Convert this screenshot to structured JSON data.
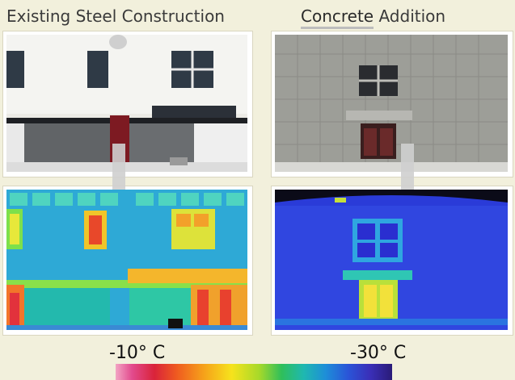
{
  "titles": {
    "left": "Existing Steel Construction",
    "right_concrete": "Concrete",
    "right_addition": "Addition"
  },
  "scale": {
    "warm_label": "-10° C",
    "cold_label": "-30° C",
    "colors": [
      "#f2a4c4",
      "#e24a8d",
      "#d9233a",
      "#ef5a20",
      "#f6a21a",
      "#f6e31c",
      "#a6d92a",
      "#2fbf5a",
      "#1fb8b0",
      "#1e8ed8",
      "#2a55d8",
      "#3a2fb8",
      "#2a1b78"
    ]
  }
}
